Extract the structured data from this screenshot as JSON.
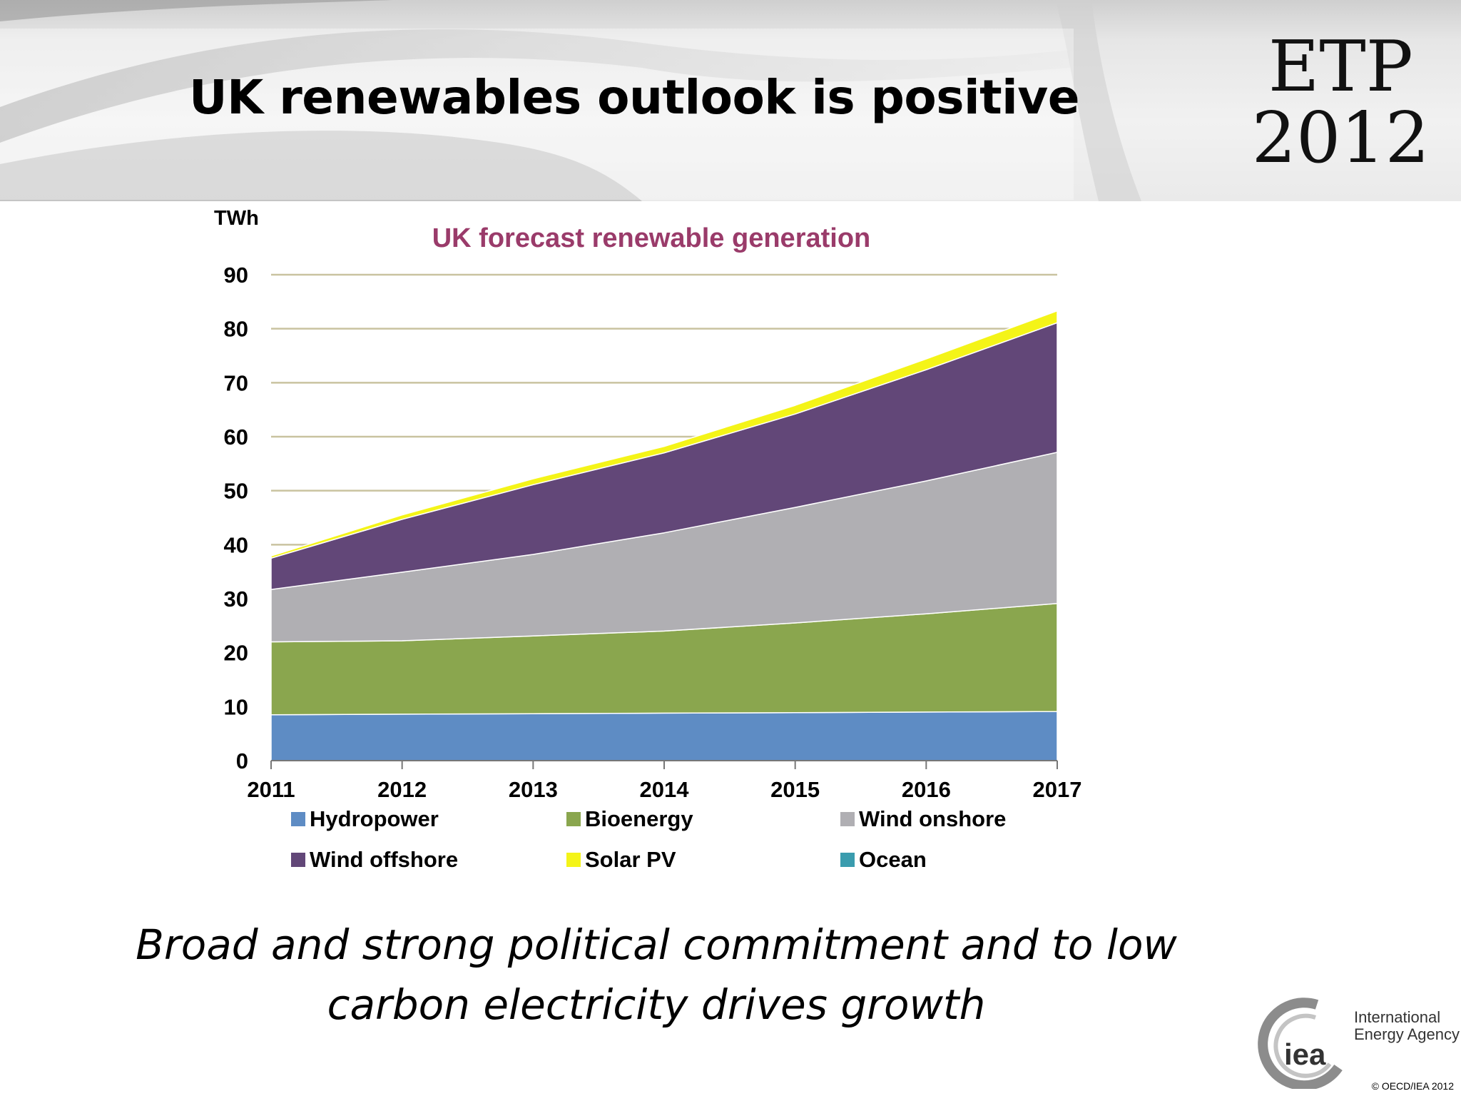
{
  "slide": {
    "title": "UK renewables outlook is positive",
    "caption_line1": "Broad and strong political commitment and to low",
    "caption_line2": "carbon electricity drives growth"
  },
  "etp_logo": {
    "line1": "ETP",
    "line2": "2012"
  },
  "iea_logo": {
    "abbr": "iea",
    "name_line1": "International",
    "name_line2": "Energy Agency",
    "copyright": "© OECD/IEA 2012"
  },
  "colors": {
    "title_purple": "#9a3b6a",
    "gridline": "#c9c3a0"
  },
  "chart_data": {
    "type": "area",
    "stacked": true,
    "title": "UK forecast renewable generation",
    "ylabel": "TWh",
    "xlabel": "",
    "x": [
      "2011",
      "2012",
      "2013",
      "2014",
      "2015",
      "2016",
      "2017"
    ],
    "ylim": [
      0,
      90
    ],
    "yticks": [
      0,
      10,
      20,
      30,
      40,
      50,
      60,
      70,
      80,
      90
    ],
    "grid": true,
    "legend": "bottom",
    "series": [
      {
        "name": "Hydropower",
        "color": "#5e8cc4",
        "values": [
          8.5,
          8.6,
          8.7,
          8.8,
          8.9,
          9.0,
          9.1
        ]
      },
      {
        "name": "Bioenergy",
        "color": "#8aa64e",
        "values": [
          13.5,
          13.6,
          14.4,
          15.2,
          16.6,
          18.2,
          20.0
        ]
      },
      {
        "name": "Wind onshore",
        "color": "#b0afb3",
        "values": [
          9.7,
          12.7,
          15.1,
          18.2,
          21.4,
          24.6,
          28.0
        ]
      },
      {
        "name": "Wind offshore",
        "color": "#624778",
        "values": [
          5.8,
          9.8,
          12.9,
          14.8,
          17.3,
          20.6,
          24.0
        ]
      },
      {
        "name": "Solar PV",
        "color": "#f4f418",
        "values": [
          0.4,
          0.8,
          1.1,
          1.2,
          1.6,
          2.0,
          2.2
        ]
      },
      {
        "name": "Ocean",
        "color": "#3a9cae",
        "values": [
          0,
          0,
          0,
          0,
          0,
          0,
          0
        ]
      }
    ]
  }
}
